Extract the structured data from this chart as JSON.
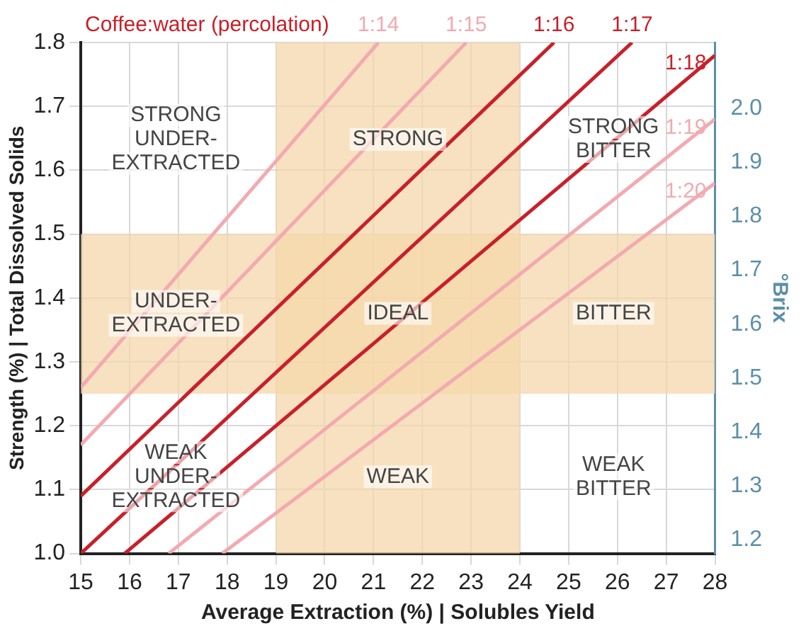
{
  "chart_data": {
    "type": "line",
    "title": "Coffee:water (percolation)",
    "xlabel": "Average Extraction (%) | Solubles Yield",
    "ylabel": "Strength (%) | Total Dissolved Solids",
    "y2label": "°Brix",
    "xlim": [
      15,
      28
    ],
    "xticks": [
      15,
      16,
      17,
      18,
      19,
      20,
      21,
      22,
      23,
      24,
      25,
      26,
      27,
      28
    ],
    "ylim": [
      1.0,
      1.8
    ],
    "yticks": [
      {
        "value": 1,
        "label": "1.0"
      },
      1.1,
      1.2,
      1.3,
      1.4,
      1.5,
      1.6,
      1.7,
      1.8
    ],
    "y2lim": [
      1.175,
      2.122
    ],
    "y2ticks": [
      1.2,
      1.3,
      1.4,
      1.5,
      1.6,
      1.7,
      1.8,
      1.9,
      {
        "value": 2,
        "label": "2.0"
      }
    ],
    "grid": true,
    "legend": false,
    "marker": "none",
    "line_style": "solid",
    "series": [
      {
        "name": "1:14",
        "color": "#f2aab0",
        "x": [
          15,
          21.1
        ],
        "values": [
          1.26,
          1.8
        ]
      },
      {
        "name": "1:15",
        "color": "#f2aab0",
        "x": [
          15,
          22.9
        ],
        "values": [
          1.17,
          1.8
        ]
      },
      {
        "name": "1:16",
        "color": "#c8202a",
        "x": [
          15,
          24.7
        ],
        "values": [
          1.09,
          1.8
        ]
      },
      {
        "name": "1:17",
        "color": "#c8202a",
        "x": [
          15,
          26.3
        ],
        "values": [
          1.0,
          1.8
        ]
      },
      {
        "name": "1:18",
        "color": "#c8202a",
        "x": [
          15.9,
          28
        ],
        "values": [
          1.0,
          1.78
        ]
      },
      {
        "name": "1:19",
        "color": "#f2aab0",
        "x": [
          16.8,
          28
        ],
        "values": [
          1.0,
          1.68
        ]
      },
      {
        "name": "1:20",
        "color": "#f2aab0",
        "x": [
          17.9,
          28
        ],
        "values": [
          1.0,
          1.58
        ]
      }
    ],
    "bands": [
      {
        "axis": "x",
        "from": 19,
        "to": 24,
        "label": null,
        "color": "#f5d7ab"
      },
      {
        "axis": "y",
        "from": 1.25,
        "to": 1.5,
        "label": null,
        "color": "#f5d7ab"
      }
    ],
    "annotations": [
      "STRONG\nUNDER-\nEXTRACTED",
      "STRONG",
      "STRONG\nBITTER",
      "UNDER-\nEXTRACTED",
      "IDEAL",
      "BITTER",
      "WEAK\nUNDER-\nEXTRACTED",
      "WEAK",
      "WEAK\nBITTER"
    ]
  }
}
